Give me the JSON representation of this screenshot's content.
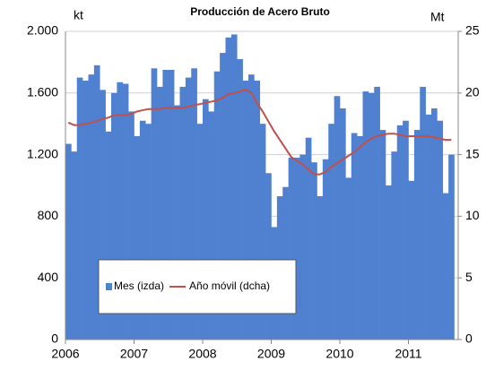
{
  "chart_data": {
    "type": "bar",
    "title": "Producción de Acero Bruto",
    "y_label": "kt",
    "y2_label": "Mt",
    "categories": [
      "2006",
      null,
      null,
      null,
      null,
      null,
      null,
      null,
      null,
      null,
      null,
      null,
      "2007",
      null,
      null,
      null,
      null,
      null,
      null,
      null,
      null,
      null,
      null,
      null,
      "2008",
      null,
      null,
      null,
      null,
      null,
      null,
      null,
      null,
      null,
      null,
      null,
      "2009",
      null,
      null,
      null,
      null,
      null,
      null,
      null,
      null,
      null,
      null,
      null,
      "2010",
      null,
      null,
      null,
      null,
      null,
      null,
      null,
      null,
      null,
      null,
      null,
      "2011",
      null,
      null,
      null,
      null,
      null,
      null,
      null
    ],
    "series": [
      {
        "name": "Mes (izda)",
        "type": "bar",
        "color": "#4f81d0",
        "values": [
          1270,
          1220,
          1700,
          1680,
          1720,
          1780,
          1620,
          1350,
          1600,
          1670,
          1660,
          1480,
          1320,
          1420,
          1400,
          1760,
          1640,
          1750,
          1750,
          1520,
          1640,
          1700,
          1760,
          1400,
          1560,
          1480,
          1740,
          1860,
          1960,
          1980,
          1820,
          1680,
          1720,
          1680,
          1400,
          1080,
          730,
          930,
          990,
          1180,
          1180,
          1200,
          1310,
          1150,
          930,
          1170,
          1400,
          1580,
          1500,
          1050,
          1340,
          1320,
          1610,
          1600,
          1640,
          1360,
          1000,
          1220,
          1390,
          1420,
          1030,
          1360,
          1640,
          1460,
          1500,
          1420,
          950,
          1200
        ]
      },
      {
        "name": "Año móvil (dcha)",
        "type": "line",
        "axis": "y2",
        "color": "#c0504d",
        "values": [
          17.6,
          17.4,
          17.4,
          17.5,
          17.6,
          17.7,
          17.9,
          18.0,
          18.2,
          18.2,
          18.2,
          18.3,
          18.5,
          18.6,
          18.7,
          18.7,
          18.7,
          18.8,
          18.8,
          18.8,
          18.8,
          18.9,
          19.0,
          19.1,
          19.2,
          19.3,
          19.4,
          19.6,
          19.9,
          20.0,
          20.1,
          20.3,
          20.0,
          19.2,
          18.5,
          17.7,
          16.9,
          16.2,
          15.5,
          14.8,
          14.5,
          14.2,
          13.8,
          13.4,
          13.4,
          13.6,
          14.0,
          14.3,
          14.6,
          14.9,
          15.2,
          15.6,
          16.0,
          16.3,
          16.5,
          16.6,
          16.7,
          16.7,
          16.6,
          16.5,
          16.5,
          16.5,
          16.5,
          16.5,
          16.4,
          16.3,
          16.2,
          16.2
        ]
      }
    ],
    "ylim": [
      0,
      2000
    ],
    "yticks": [
      0,
      {
        "value": 400,
        "label": "400"
      },
      {
        "value": 800,
        "label": "800"
      },
      {
        "value": 1200,
        "label": "1.200"
      },
      {
        "value": 1600,
        "label": "1.600"
      },
      {
        "value": 2000,
        "label": "2.000"
      }
    ],
    "y2lim": [
      0,
      25
    ],
    "y2ticks": [
      0,
      5,
      10,
      15,
      20,
      25
    ],
    "grid": true,
    "legend": "lower left"
  }
}
